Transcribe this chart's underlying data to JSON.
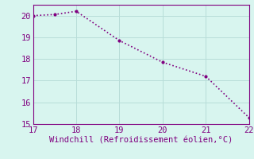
{
  "x": [
    17,
    17.5,
    18,
    19,
    20,
    21,
    22
  ],
  "y": [
    20.0,
    20.05,
    20.2,
    18.85,
    17.85,
    17.2,
    15.3
  ],
  "line_color": "#800080",
  "marker": ".",
  "marker_size": 4,
  "line_style": ":",
  "line_width": 1.2,
  "xlabel": "Windchill (Refroidissement éolien,°C)",
  "xlabel_color": "#800080",
  "xlabel_fontsize": 7.5,
  "background_color": "#d8f5ef",
  "grid_color": "#b8ddd8",
  "tick_color": "#800080",
  "tick_fontsize": 7.5,
  "xlim": [
    17,
    22
  ],
  "ylim": [
    15,
    20.5
  ],
  "xticks": [
    17,
    18,
    19,
    20,
    21,
    22
  ],
  "yticks": [
    15,
    16,
    17,
    18,
    19,
    20
  ]
}
